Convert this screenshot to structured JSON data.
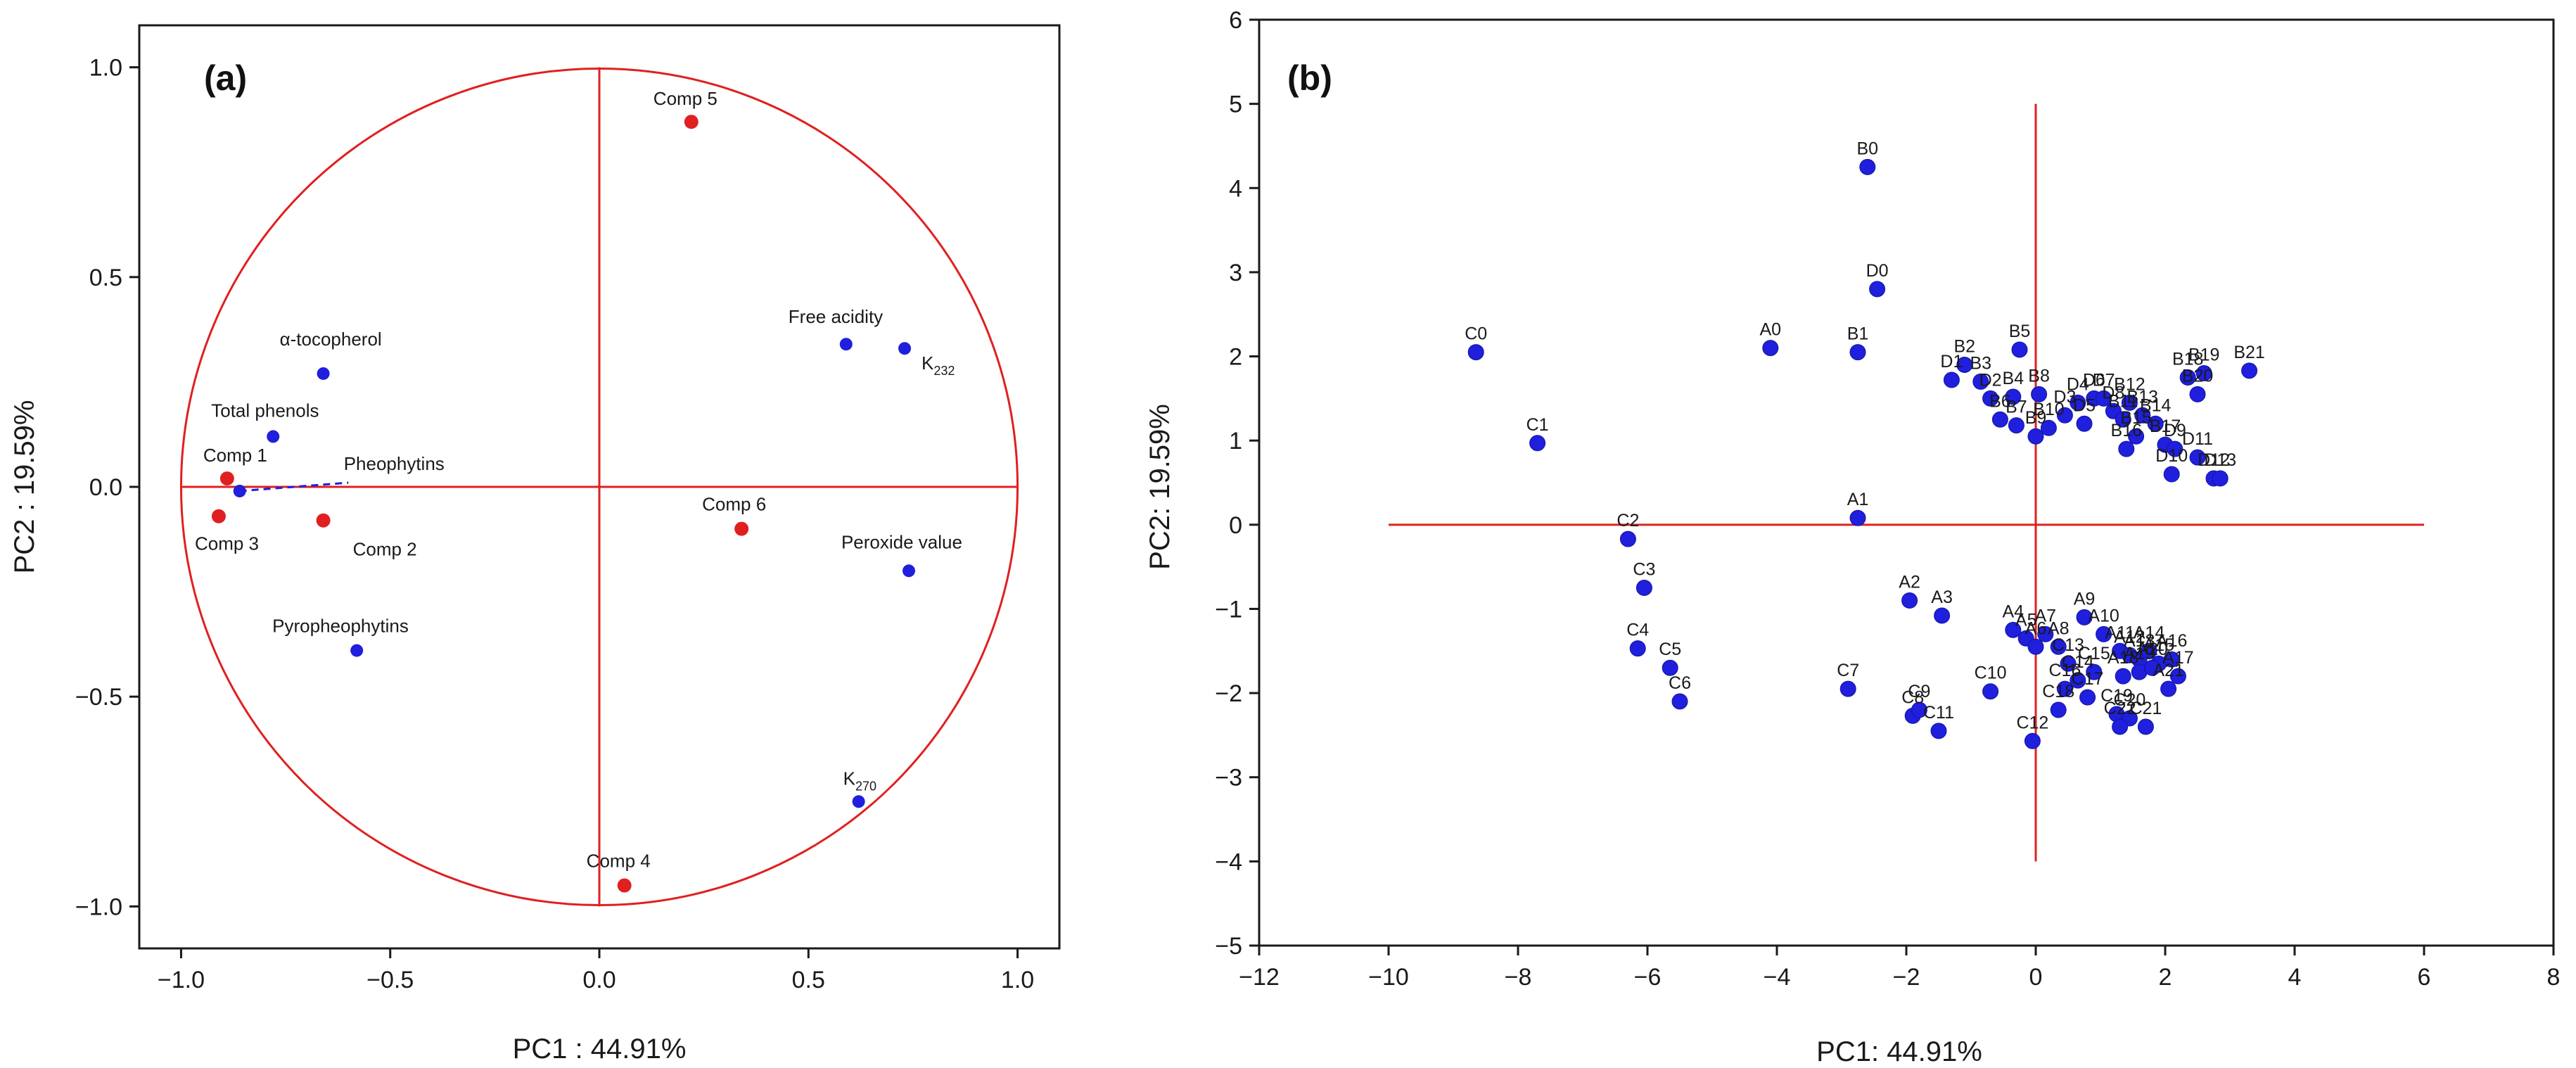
{
  "chart_data": [
    {
      "type": "scatter",
      "panel_label": "(a)",
      "xlabel": "PC1 : 44.91%",
      "ylabel": "PC2 : 19.59%",
      "xlim": [
        -1.1,
        1.1
      ],
      "ylim": [
        -1.1,
        1.1
      ],
      "xticks": [
        -1.0,
        -0.5,
        0.0,
        0.5,
        1.0
      ],
      "xtick_labels": [
        "−1.0",
        "−0.5",
        "0.0",
        "0.5",
        "1.0"
      ],
      "yticks": [
        1.0,
        0.5,
        0.0,
        -0.5,
        -1.0
      ],
      "ytick_labels": [
        "1.0",
        "0.5",
        "0.0",
        "−0.5",
        "−1.0"
      ],
      "unit_circle": true,
      "red_color": "#e02020",
      "blue_color": "#1f1fdd",
      "series": [
        {
          "name": "variables",
          "color": "#1f1fdd",
          "points": [
            {
              "label": "α-tocopherol",
              "x": -0.66,
              "y": 0.27
            },
            {
              "label": "Total phenols",
              "x": -0.78,
              "y": 0.12
            },
            {
              "label": "Pheophytins",
              "x": -0.86,
              "y": -0.01
            },
            {
              "label": "Pyropheophytins",
              "x": -0.58,
              "y": -0.39
            },
            {
              "label": "Free acidity",
              "x": 0.59,
              "y": 0.34
            },
            {
              "label": "K232",
              "x": 0.73,
              "y": 0.33
            },
            {
              "label": "Peroxide value",
              "x": 0.74,
              "y": -0.2
            },
            {
              "label": "K270",
              "x": 0.62,
              "y": -0.75
            }
          ]
        },
        {
          "name": "components",
          "color": "#e02020",
          "points": [
            {
              "label": "Comp 1",
              "x": -0.89,
              "y": 0.02
            },
            {
              "label": "Comp 2",
              "x": -0.66,
              "y": -0.08
            },
            {
              "label": "Comp 3",
              "x": -0.91,
              "y": -0.07
            },
            {
              "label": "Comp 4",
              "x": 0.06,
              "y": -0.95
            },
            {
              "label": "Comp 5",
              "x": 0.22,
              "y": 0.87
            },
            {
              "label": "Comp 6",
              "x": 0.34,
              "y": -0.1
            }
          ]
        }
      ]
    },
    {
      "type": "scatter",
      "panel_label": "(b)",
      "xlabel": "PC1: 44.91%",
      "ylabel": "PC2: 19.59%",
      "xlim": [
        -12,
        8
      ],
      "ylim": [
        -5,
        6
      ],
      "xticks": [
        -12,
        -10,
        -8,
        -6,
        -4,
        -2,
        0,
        2,
        4,
        6,
        8
      ],
      "xtick_labels": [
        "−12",
        "−10",
        "−8",
        "−6",
        "−4",
        "−2",
        "0",
        "2",
        "4",
        "6",
        "8"
      ],
      "yticks": [
        6,
        5,
        4,
        3,
        2,
        1,
        0,
        -1,
        -2,
        -3,
        -4,
        -5
      ],
      "ytick_labels": [
        "6",
        "5",
        "4",
        "3",
        "2",
        "1",
        "0",
        "−1",
        "−2",
        "−3",
        "−4",
        "−5"
      ],
      "reference_lines": {
        "h": {
          "y": 0,
          "x_from": -10,
          "x_to": 6
        },
        "v": {
          "x": 0,
          "y_from": -4,
          "y_to": 5
        }
      },
      "point_color": "#1f1fdd",
      "points": [
        {
          "label": "B0",
          "x": -2.6,
          "y": 4.25
        },
        {
          "label": "D0",
          "x": -2.45,
          "y": 2.8
        },
        {
          "label": "A0",
          "x": -4.1,
          "y": 2.1
        },
        {
          "label": "B1",
          "x": -2.75,
          "y": 2.05
        },
        {
          "label": "C0",
          "x": -8.65,
          "y": 2.05
        },
        {
          "label": "C1",
          "x": -7.7,
          "y": 0.97
        },
        {
          "label": "A1",
          "x": -2.75,
          "y": 0.08
        },
        {
          "label": "C2",
          "x": -6.3,
          "y": -0.17
        },
        {
          "label": "C3",
          "x": -6.05,
          "y": -0.75
        },
        {
          "label": "C4",
          "x": -6.15,
          "y": -1.47
        },
        {
          "label": "C5",
          "x": -5.65,
          "y": -1.7
        },
        {
          "label": "C6",
          "x": -5.5,
          "y": -2.1
        },
        {
          "label": "C7",
          "x": -2.9,
          "y": -1.95
        },
        {
          "label": "A2",
          "x": -1.95,
          "y": -0.9
        },
        {
          "label": "A3",
          "x": -1.45,
          "y": -1.08
        },
        {
          "label": "C8",
          "x": -1.9,
          "y": -2.27
        },
        {
          "label": "C9",
          "x": -1.8,
          "y": -2.2
        },
        {
          "label": "C10",
          "x": -0.7,
          "y": -1.98
        },
        {
          "label": "C11",
          "x": -1.5,
          "y": -2.45
        },
        {
          "label": "C12",
          "x": -0.05,
          "y": -2.57
        },
        {
          "label": "B2",
          "x": -1.1,
          "y": 1.9
        },
        {
          "label": "D1",
          "x": -1.3,
          "y": 1.72
        },
        {
          "label": "B3",
          "x": -0.85,
          "y": 1.7
        },
        {
          "label": "D2",
          "x": -0.7,
          "y": 1.5
        },
        {
          "label": "B4",
          "x": -0.35,
          "y": 1.52
        },
        {
          "label": "B5",
          "x": -0.25,
          "y": 2.08
        },
        {
          "label": "B6",
          "x": -0.55,
          "y": 1.25
        },
        {
          "label": "B7",
          "x": -0.3,
          "y": 1.18
        },
        {
          "label": "B8",
          "x": 0.05,
          "y": 1.55
        },
        {
          "label": "B9",
          "x": 0.0,
          "y": 1.05
        },
        {
          "label": "B10",
          "x": 0.2,
          "y": 1.15
        },
        {
          "label": "D3",
          "x": 0.45,
          "y": 1.3
        },
        {
          "label": "D4",
          "x": 0.65,
          "y": 1.45
        },
        {
          "label": "D5",
          "x": 0.75,
          "y": 1.2
        },
        {
          "label": "D6",
          "x": 0.9,
          "y": 1.5
        },
        {
          "label": "D7",
          "x": 1.05,
          "y": 1.5
        },
        {
          "label": "D8",
          "x": 1.2,
          "y": 1.35
        },
        {
          "label": "B11",
          "x": 1.35,
          "y": 1.25
        },
        {
          "label": "B12",
          "x": 1.45,
          "y": 1.45
        },
        {
          "label": "B13",
          "x": 1.65,
          "y": 1.3
        },
        {
          "label": "B14",
          "x": 1.85,
          "y": 1.2
        },
        {
          "label": "B15",
          "x": 1.55,
          "y": 1.05
        },
        {
          "label": "B16",
          "x": 1.4,
          "y": 0.9
        },
        {
          "label": "B17",
          "x": 2.0,
          "y": 0.95
        },
        {
          "label": "B18",
          "x": 2.35,
          "y": 1.75
        },
        {
          "label": "B19",
          "x": 2.6,
          "y": 1.8
        },
        {
          "label": "B20",
          "x": 2.5,
          "y": 1.55
        },
        {
          "label": "B21",
          "x": 3.3,
          "y": 1.83
        },
        {
          "label": "D9",
          "x": 2.15,
          "y": 0.9
        },
        {
          "label": "D10",
          "x": 2.1,
          "y": 0.6
        },
        {
          "label": "D11",
          "x": 2.5,
          "y": 0.8
        },
        {
          "label": "D12",
          "x": 2.75,
          "y": 0.55
        },
        {
          "label": "D13",
          "x": 2.85,
          "y": 0.55
        },
        {
          "label": "A4",
          "x": -0.35,
          "y": -1.25
        },
        {
          "label": "A5",
          "x": -0.15,
          "y": -1.35
        },
        {
          "label": "A6",
          "x": 0.0,
          "y": -1.45
        },
        {
          "label": "A7",
          "x": 0.15,
          "y": -1.3
        },
        {
          "label": "A8",
          "x": 0.35,
          "y": -1.45
        },
        {
          "label": "A9",
          "x": 0.75,
          "y": -1.1
        },
        {
          "label": "A10",
          "x": 1.05,
          "y": -1.3
        },
        {
          "label": "A11",
          "x": 1.3,
          "y": -1.5
        },
        {
          "label": "A12",
          "x": 1.45,
          "y": -1.55
        },
        {
          "label": "A13",
          "x": 1.6,
          "y": -1.6
        },
        {
          "label": "A14",
          "x": 1.75,
          "y": -1.5
        },
        {
          "label": "A15",
          "x": 1.9,
          "y": -1.65
        },
        {
          "label": "A16",
          "x": 2.1,
          "y": -1.6
        },
        {
          "label": "A17",
          "x": 2.2,
          "y": -1.8
        },
        {
          "label": "A18",
          "x": 1.35,
          "y": -1.8
        },
        {
          "label": "A19",
          "x": 1.6,
          "y": -1.75
        },
        {
          "label": "A20",
          "x": 1.8,
          "y": -1.7
        },
        {
          "label": "A21",
          "x": 2.05,
          "y": -1.95
        },
        {
          "label": "C13",
          "x": 0.5,
          "y": -1.65
        },
        {
          "label": "C14",
          "x": 0.65,
          "y": -1.85
        },
        {
          "label": "C15",
          "x": 0.9,
          "y": -1.75
        },
        {
          "label": "C16",
          "x": 0.45,
          "y": -1.95
        },
        {
          "label": "C17",
          "x": 0.8,
          "y": -2.05
        },
        {
          "label": "C18",
          "x": 0.35,
          "y": -2.2
        },
        {
          "label": "C19",
          "x": 1.25,
          "y": -2.25
        },
        {
          "label": "C20",
          "x": 1.45,
          "y": -2.3
        },
        {
          "label": "C21",
          "x": 1.7,
          "y": -2.4
        },
        {
          "label": "C22",
          "x": 1.3,
          "y": -2.4
        }
      ]
    }
  ]
}
